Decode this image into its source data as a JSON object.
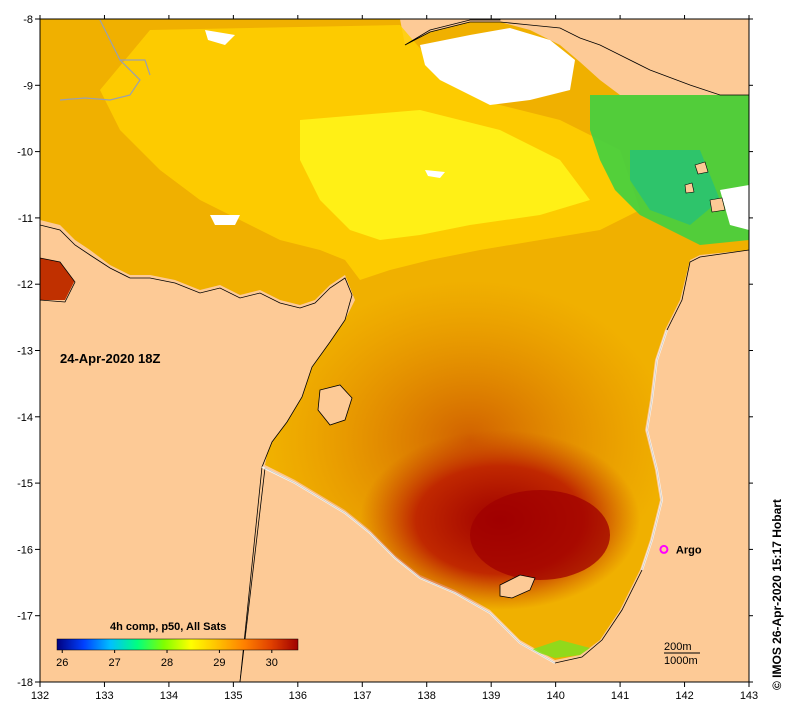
{
  "map": {
    "timestamp": "24-Apr-2020 18Z",
    "credit": "© IMOS 26-Apr-2020 15:17 Hobart",
    "lon_ticks": [
      132,
      133,
      134,
      135,
      136,
      137,
      138,
      139,
      140,
      141,
      142,
      143
    ],
    "lat_ticks": [
      -8,
      -9,
      -10,
      -11,
      -12,
      -13,
      -14,
      -15,
      -16,
      -17,
      -18
    ],
    "lon_range": [
      132,
      143
    ],
    "lat_range": [
      -18,
      -8
    ],
    "colorbar": {
      "title": "4h comp, p50, All Sats",
      "ticks": [
        26,
        27,
        28,
        29,
        30
      ],
      "range": [
        25.9,
        30.5
      ],
      "colors": [
        "#000080",
        "#0040ff",
        "#00c0ff",
        "#00ff80",
        "#80ff00",
        "#ffff00",
        "#ffc000",
        "#ff8000",
        "#e04000",
        "#a00000"
      ]
    },
    "markers": [
      {
        "label": "Argo",
        "lon": 141.68,
        "lat": -16.0,
        "color": "#ff00ff"
      }
    ],
    "isobaths": [
      "200m",
      "1000m"
    ],
    "colors": {
      "land": "#fdca96",
      "no_data": "#ffffff",
      "frame": "#000000"
    }
  }
}
